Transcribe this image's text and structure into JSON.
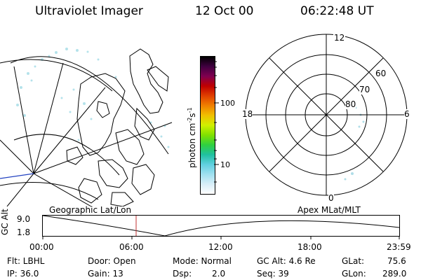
{
  "header": {
    "instrument": "Ultraviolet Imager",
    "date": "12 Oct 00",
    "time": "06:22:48 UT"
  },
  "colorbar": {
    "unit_label": "photon cm",
    "unit_sup1": "-2",
    "unit_s": "s",
    "unit_sup2": "-1",
    "ticks": [
      "100",
      "10"
    ],
    "colors": [
      "#000000",
      "#400040",
      "#800050",
      "#c00000",
      "#e04000",
      "#f08000",
      "#f0c000",
      "#d0f000",
      "#80e000",
      "#30d040",
      "#20c0a0",
      "#60d0e0",
      "#a0e0f0",
      "#d8eef8",
      "#ffffff"
    ]
  },
  "polar": {
    "mlt_labels": {
      "top": "12",
      "left": "18",
      "right": "6",
      "bottom": "0"
    },
    "lat_labels": [
      "60",
      "70",
      "80"
    ]
  },
  "altitude_plot": {
    "axis_label": "GC Alt",
    "ticks": [
      "9.0",
      "1.8"
    ],
    "left_title": "Geographic Lat/Lon",
    "right_title": "Apex MLat/MLT",
    "time_ticks": [
      "00:00",
      "06:00",
      "12:00",
      "18:00",
      "23:59"
    ]
  },
  "footer": {
    "filter": "Flt: LBHL",
    "ip": "IP: 36.0",
    "door": "Door: Open",
    "gain": "Gain: 13",
    "mode": "Mode: Normal",
    "dsp_label": "Dsp:",
    "dsp_value": "2.0",
    "gc_alt": "GC Alt: 4.6 Re",
    "seq": "Seq: 39",
    "glat_label": "GLat:",
    "glat_value": "75.6",
    "glon_label": "GLon:",
    "glon_value": "289.0"
  }
}
